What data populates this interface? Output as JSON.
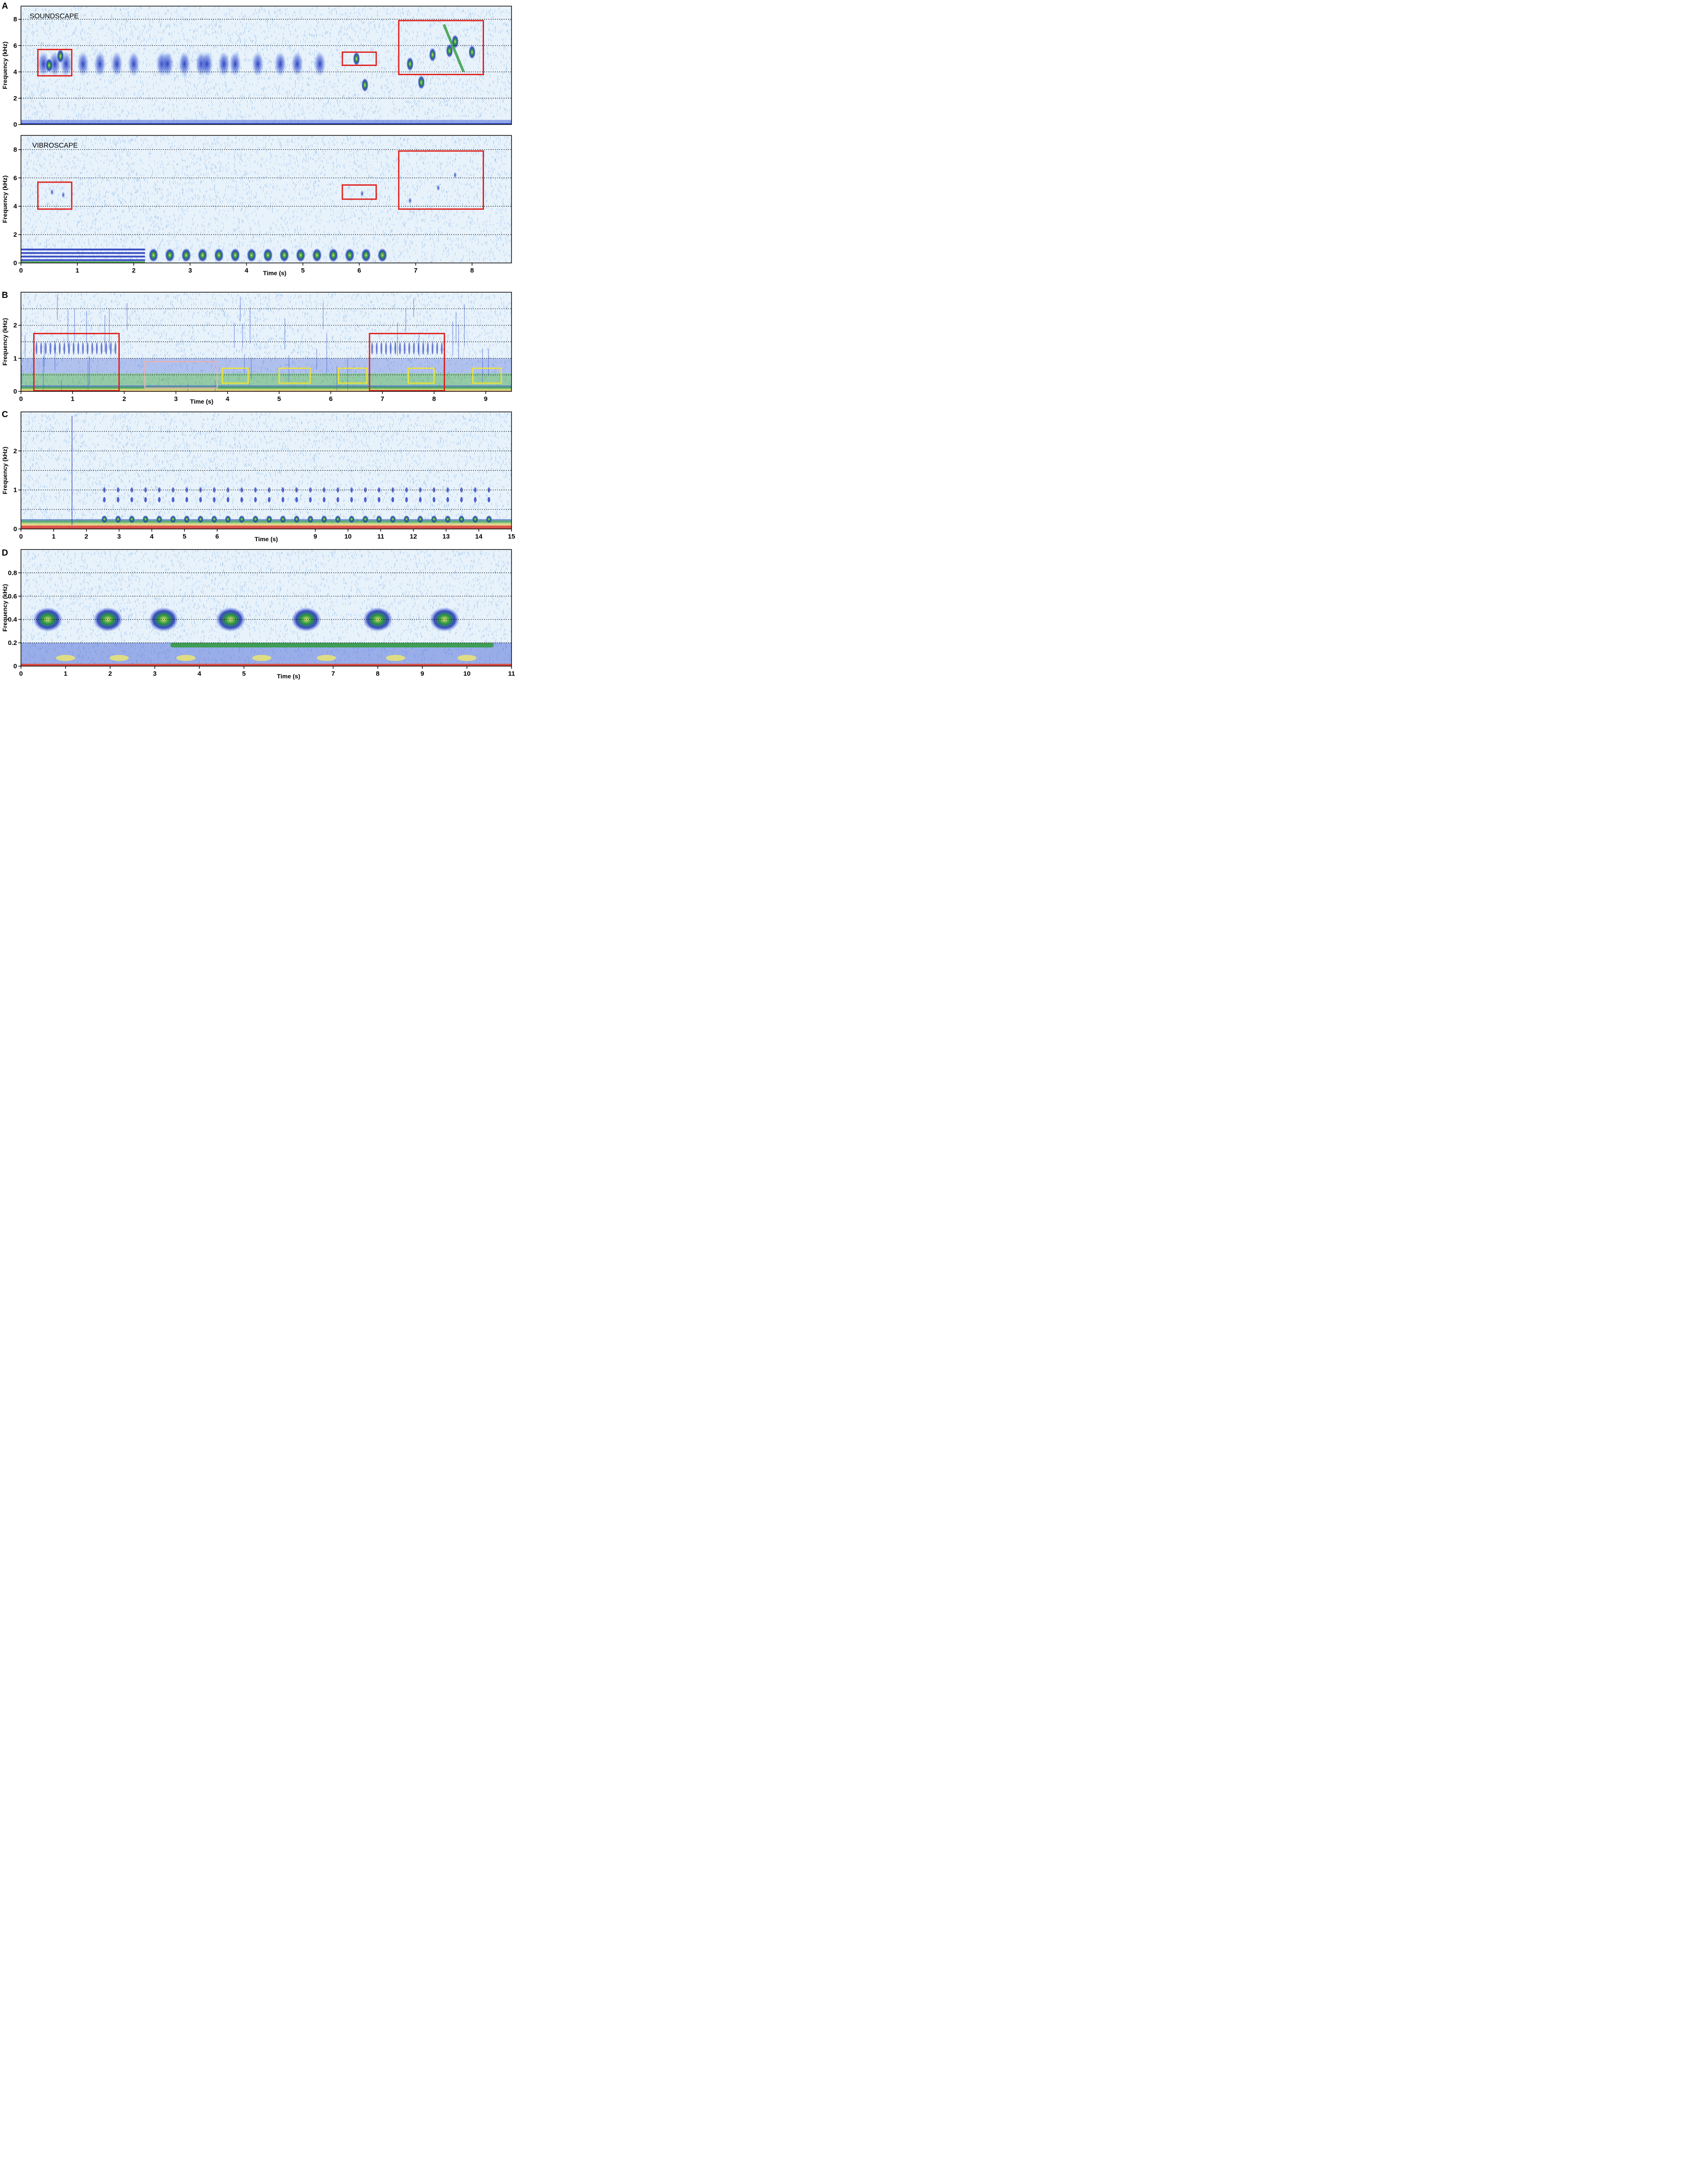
{
  "colors": {
    "background": "#e8f2fb",
    "noise": "#9cc4ec",
    "signal_weak": "#4a67d8",
    "signal_strong": "#1b2fb8",
    "signal_green": "#2f9a3c",
    "signal_yellow": "#e6e27a",
    "signal_orange": "#e57a2e",
    "signal_red": "#d8362a",
    "box_red": "#e0201c",
    "box_yellow": "#f3e52a",
    "box_pink": "#e9b2b4",
    "gridline": "#000000"
  },
  "chart_data": [
    {
      "id": "A-top",
      "panel_letter": "A",
      "type": "heatmap",
      "label": "SOUNDSCAPE",
      "ylabel": "Frequency (kHz)",
      "xlim": [
        0,
        8.7
      ],
      "ylim": [
        0,
        9
      ],
      "yticks": [
        0,
        2,
        4,
        6,
        8
      ],
      "ytick_labels": [
        "0",
        "2",
        "4",
        "6",
        "8"
      ],
      "dotted_y": [
        2,
        4,
        6,
        8
      ],
      "xticks": [],
      "xtick_labels": [],
      "boxes": [
        {
          "x0": 0.3,
          "x1": 0.9,
          "y0": 3.7,
          "y1": 5.7,
          "color": "red"
        },
        {
          "x0": 5.7,
          "x1": 6.3,
          "y0": 4.5,
          "y1": 5.5,
          "color": "red"
        },
        {
          "x0": 6.7,
          "x1": 8.2,
          "y0": 3.8,
          "y1": 7.9,
          "color": "red"
        }
      ]
    },
    {
      "id": "A-bottom",
      "panel_letter": "",
      "type": "heatmap",
      "label": "VIBROSCAPE",
      "ylabel": "Frequency (kHz)",
      "xlabel": "Time (s)",
      "xlim": [
        0,
        8.7
      ],
      "ylim": [
        0,
        9
      ],
      "yticks": [
        0,
        2,
        4,
        6,
        8
      ],
      "ytick_labels": [
        "0",
        "2",
        "4",
        "6",
        "8"
      ],
      "dotted_y": [
        2,
        4,
        6,
        8
      ],
      "xticks": [
        0,
        1,
        2,
        3,
        4,
        5,
        6,
        7,
        8
      ],
      "xtick_labels": [
        "0",
        "1",
        "2",
        "3",
        "4",
        "5",
        "6",
        "7",
        "8"
      ],
      "boxes": [
        {
          "x0": 0.3,
          "x1": 0.9,
          "y0": 3.8,
          "y1": 5.7,
          "color": "red"
        },
        {
          "x0": 5.7,
          "x1": 6.3,
          "y0": 4.5,
          "y1": 5.5,
          "color": "red"
        },
        {
          "x0": 6.7,
          "x1": 8.2,
          "y0": 3.8,
          "y1": 7.9,
          "color": "red"
        }
      ]
    },
    {
      "id": "B",
      "panel_letter": "B",
      "type": "heatmap",
      "ylabel": "Frequency (kHz)",
      "xlabel": "Time (s)",
      "xlim": [
        0,
        9.5
      ],
      "ylim": [
        0,
        3
      ],
      "yticks": [
        0,
        1,
        2
      ],
      "ytick_labels": [
        "0",
        "1",
        "2"
      ],
      "dotted_y": [
        0.5,
        1,
        1.5,
        2,
        2.5
      ],
      "xticks": [
        0,
        1,
        2,
        3,
        4,
        5,
        6,
        7,
        8,
        9
      ],
      "xtick_labels": [
        "0",
        "1",
        "2",
        "3",
        "4",
        "5",
        "6",
        "7",
        "8",
        "9"
      ],
      "boxes": [
        {
          "x0": 0.25,
          "x1": 1.9,
          "y0": 0.02,
          "y1": 1.75,
          "color": "red"
        },
        {
          "x0": 2.4,
          "x1": 3.8,
          "y0": 0.1,
          "y1": 0.9,
          "color": "pink"
        },
        {
          "x0": 3.9,
          "x1": 4.4,
          "y0": 0.25,
          "y1": 0.7,
          "color": "yellow"
        },
        {
          "x0": 5.0,
          "x1": 5.6,
          "y0": 0.25,
          "y1": 0.7,
          "color": "yellow"
        },
        {
          "x0": 6.15,
          "x1": 6.7,
          "y0": 0.25,
          "y1": 0.7,
          "color": "yellow"
        },
        {
          "x0": 6.75,
          "x1": 8.2,
          "y0": 0.02,
          "y1": 1.75,
          "color": "red"
        },
        {
          "x0": 7.5,
          "x1": 8.0,
          "y0": 0.25,
          "y1": 0.7,
          "color": "yellow"
        },
        {
          "x0": 8.75,
          "x1": 9.3,
          "y0": 0.25,
          "y1": 0.7,
          "color": "yellow"
        }
      ]
    },
    {
      "id": "C",
      "panel_letter": "C",
      "type": "heatmap",
      "ylabel": "Frequency (kHz)",
      "xlabel": "Time (s)",
      "xlim": [
        0,
        15
      ],
      "ylim": [
        0,
        3
      ],
      "yticks": [
        0,
        1,
        2
      ],
      "ytick_labels": [
        "0",
        "1",
        "2"
      ],
      "dotted_y": [
        0.5,
        1,
        1.5,
        2,
        2.5
      ],
      "xticks": [
        0,
        1,
        2,
        3,
        4,
        5,
        6,
        9,
        10,
        11,
        12,
        13,
        14,
        15
      ],
      "xtick_labels": [
        "0",
        "1",
        "2",
        "3",
        "4",
        "5",
        "6",
        "9",
        "10",
        "11",
        "12",
        "13",
        "14",
        "15"
      ],
      "boxes": []
    },
    {
      "id": "D",
      "panel_letter": "D",
      "type": "heatmap",
      "ylabel": "Frequency (kHz)",
      "xlabel": "Time (s)",
      "xlim": [
        0,
        11
      ],
      "ylim": [
        0,
        1
      ],
      "yticks": [
        0,
        0.2,
        0.4,
        0.6,
        0.8
      ],
      "ytick_labels": [
        "0",
        "0.2",
        "0.4",
        "0.6",
        "0.8"
      ],
      "dotted_y": [
        0.2,
        0.4,
        0.6,
        0.8
      ],
      "xticks": [
        0,
        1,
        2,
        3,
        4,
        5,
        7,
        8,
        9,
        10,
        11
      ],
      "xtick_labels": [
        "0",
        "1",
        "2",
        "3",
        "4",
        "5",
        "7",
        "8",
        "9",
        "10",
        "11"
      ],
      "boxes": []
    }
  ]
}
